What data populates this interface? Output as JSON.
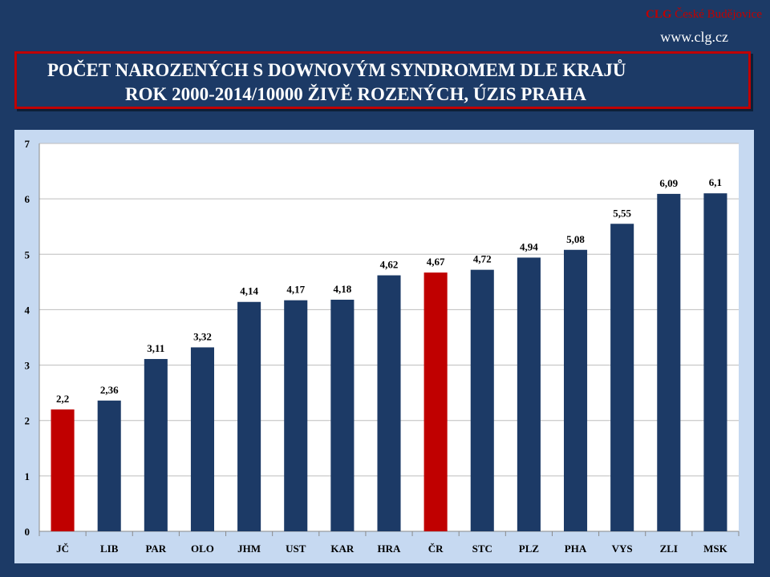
{
  "header": {
    "brand_prefix": "CLG",
    "brand_city": "České Budějovice",
    "url": "www.clg.cz",
    "title_line1": "POČET NAROZENÝCH S DOWNOVÝM SYNDROMEM DLE KRAJŮ",
    "title_line2": "ROK 2000-2014/10000 ŽIVĚ ROZENÝCH, ÚZIS PRAHA"
  },
  "colors": {
    "background": "#1c3a66",
    "panel": "#c6d9f1",
    "bar_default": "#1c3a66",
    "bar_highlight": "#c00000",
    "brand": "#c00000"
  },
  "chart_data": {
    "type": "bar",
    "categories": [
      "JČ",
      "LIB",
      "PAR",
      "OLO",
      "JHM",
      "UST",
      "KAR",
      "HRA",
      "ČR",
      "STC",
      "PLZ",
      "PHA",
      "VYS",
      "ZLI",
      "MSK"
    ],
    "values": [
      2.2,
      2.36,
      3.11,
      3.32,
      4.14,
      4.17,
      4.18,
      4.62,
      4.67,
      4.72,
      4.94,
      5.08,
      5.55,
      6.09,
      6.1
    ],
    "value_labels": [
      "2,2",
      "2,36",
      "3,11",
      "3,32",
      "4,14",
      "4,17",
      "4,18",
      "4,62",
      "4,67",
      "4,72",
      "4,94",
      "5,08",
      "5,55",
      "6,09",
      "6,1"
    ],
    "highlighted": [
      "JČ",
      "ČR"
    ],
    "ylim": [
      0,
      7
    ],
    "yticks": [
      0,
      1,
      2,
      3,
      4,
      5,
      6,
      7
    ],
    "grid": true,
    "legend": false
  }
}
